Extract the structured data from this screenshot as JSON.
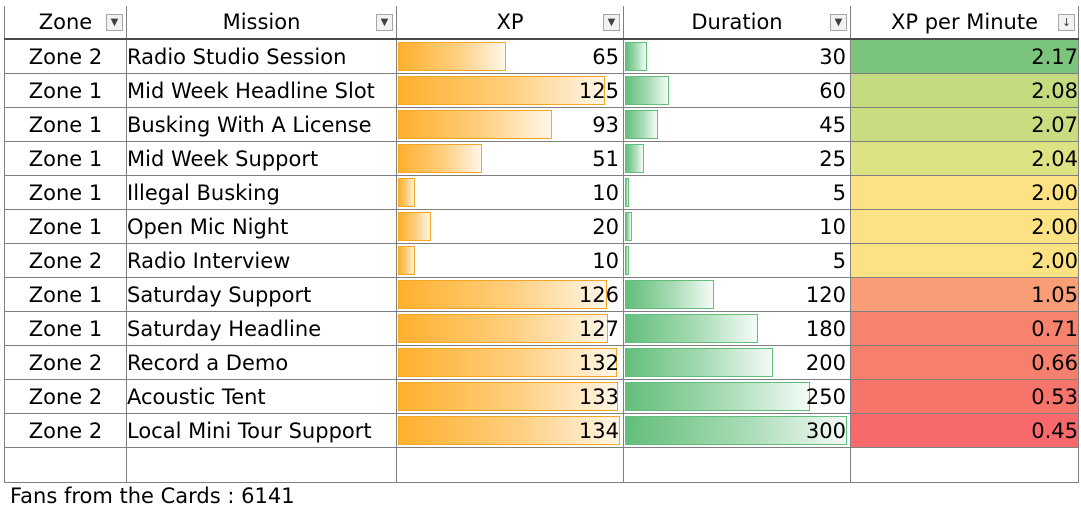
{
  "headers": {
    "zone": "Zone",
    "mission": "Mission",
    "xp": "XP",
    "duration": "Duration",
    "xp_per_minute": "XP per Minute"
  },
  "filter_icons": {
    "default": "filter-dropdown-icon",
    "sorted": "sort-descending-icon"
  },
  "max_xp": 134,
  "max_duration": 300,
  "rows": [
    {
      "zone": "Zone 2",
      "mission": "Radio Studio Session",
      "xp": "65",
      "duration": "30",
      "xp_per_minute": "2.17",
      "rate_color": "#7ac47c"
    },
    {
      "zone": "Zone 1",
      "mission": "Mid Week Headline Slot",
      "xp": "125",
      "duration": "60",
      "xp_per_minute": "2.08",
      "rate_color": "#c4dc7f"
    },
    {
      "zone": "Zone 1",
      "mission": "Busking With A License",
      "xp": "93",
      "duration": "45",
      "xp_per_minute": "2.07",
      "rate_color": "#c9dd80"
    },
    {
      "zone": "Zone 1",
      "mission": "Mid Week Support",
      "xp": "51",
      "duration": "25",
      "xp_per_minute": "2.04",
      "rate_color": "#dde282"
    },
    {
      "zone": "Zone 1",
      "mission": "Illegal Busking",
      "xp": "10",
      "duration": "5",
      "xp_per_minute": "2.00",
      "rate_color": "#fde283"
    },
    {
      "zone": "Zone 1",
      "mission": "Open Mic Night",
      "xp": "20",
      "duration": "10",
      "xp_per_minute": "2.00",
      "rate_color": "#fde283"
    },
    {
      "zone": "Zone 2",
      "mission": "Radio Interview",
      "xp": "10",
      "duration": "5",
      "xp_per_minute": "2.00",
      "rate_color": "#fde283"
    },
    {
      "zone": "Zone 1",
      "mission": "Saturday Support",
      "xp": "126",
      "duration": "120",
      "xp_per_minute": "1.05",
      "rate_color": "#f99d77"
    },
    {
      "zone": "Zone 1",
      "mission": "Saturday Headline",
      "xp": "127",
      "duration": "180",
      "xp_per_minute": "0.71",
      "rate_color": "#f7836f"
    },
    {
      "zone": "Zone 2",
      "mission": "Record a Demo",
      "xp": "132",
      "duration": "200",
      "xp_per_minute": "0.66",
      "rate_color": "#f77f6e"
    },
    {
      "zone": "Zone 2",
      "mission": "Acoustic Tent",
      "xp": "133",
      "duration": "250",
      "xp_per_minute": "0.53",
      "rate_color": "#f7746b"
    },
    {
      "zone": "Zone 2",
      "mission": "Local Mini Tour Support",
      "xp": "134",
      "duration": "300",
      "xp_per_minute": "0.45",
      "rate_color": "#f8696b"
    }
  ],
  "footer": {
    "text": "Fans from the Cards : 6141"
  }
}
